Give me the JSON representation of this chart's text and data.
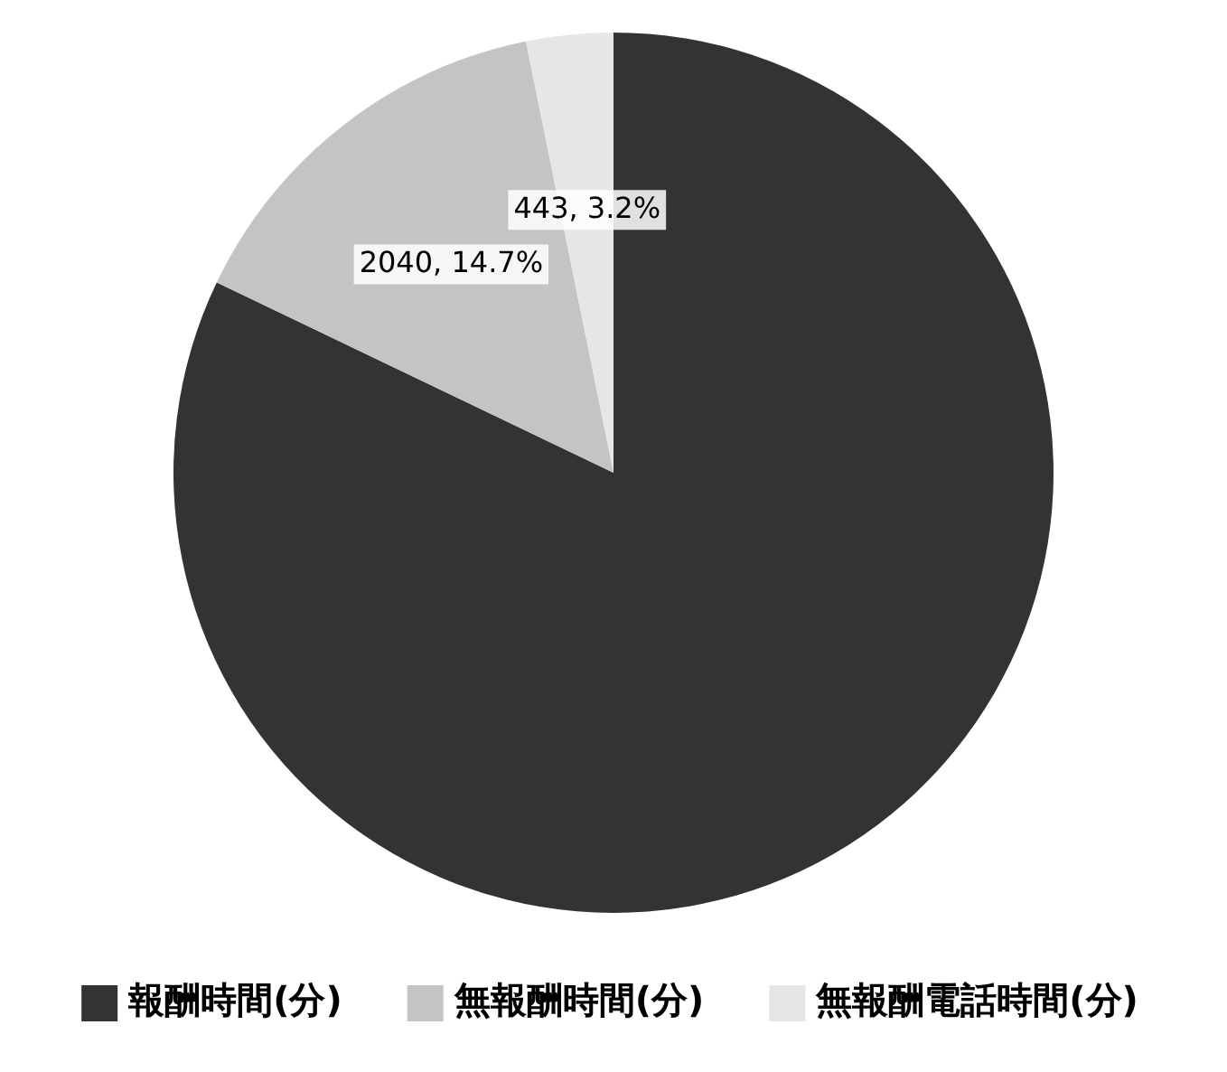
{
  "chart_data": {
    "type": "pie",
    "categories": [
      "報酬時間(分)",
      "無報酬時間(分)",
      "無報酬電話時間(分)"
    ],
    "values": [
      11400,
      2040,
      443
    ],
    "colors": [
      "#333333",
      "#c4c4c4",
      "#e6e6e6"
    ],
    "value_labels": [
      null,
      "2040, 14.7%",
      "443, 3.2%"
    ],
    "legend": "bottom"
  }
}
